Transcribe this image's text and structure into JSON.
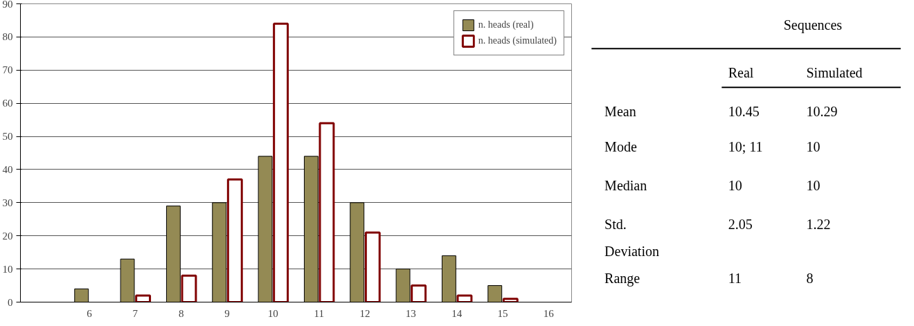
{
  "chart_data": [
    {
      "type": "bar",
      "categories": [
        null,
        "6",
        "7",
        "8",
        "9",
        "10",
        "11",
        "12",
        "13",
        "14",
        "15",
        "16"
      ],
      "series": [
        {
          "name": "n. heads (real)",
          "color": "#948a54",
          "values": [
            null,
            4,
            13,
            29,
            30,
            44,
            44,
            30,
            10,
            14,
            5,
            null
          ]
        },
        {
          "name": "n. heads (simulated)",
          "color": "#800000",
          "values": [
            null,
            null,
            2,
            8,
            37,
            84,
            54,
            21,
            5,
            2,
            1,
            null
          ]
        }
      ],
      "ylim": [
        0,
        90
      ],
      "yticks": [
        0,
        10,
        20,
        30,
        40,
        50,
        60,
        70,
        80,
        90
      ],
      "grid": "y",
      "legend": "top right"
    },
    {
      "type": "other",
      "title": "Sequences",
      "categories": [
        "Real",
        "Simulated"
      ],
      "y_categories": [
        "Mean",
        "Mode",
        "Median",
        "Std. Deviation",
        "Range"
      ],
      "cell_labels": [
        [
          "10.45",
          "10.29"
        ],
        [
          "10; 11",
          "10"
        ],
        [
          "10",
          "10"
        ],
        [
          "2.05",
          "1.22"
        ],
        [
          "11",
          "8"
        ]
      ]
    }
  ]
}
